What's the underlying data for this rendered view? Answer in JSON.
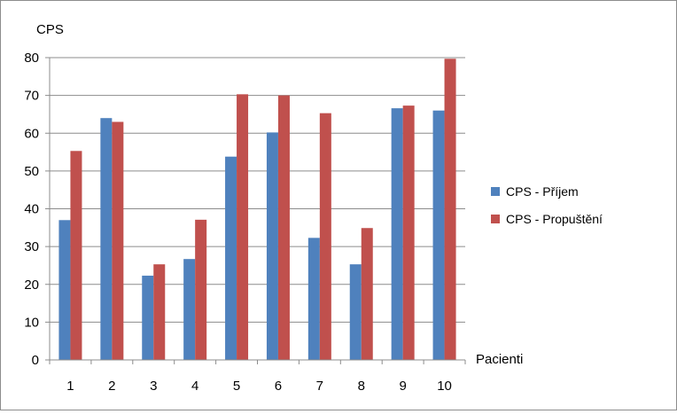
{
  "chart_data": {
    "type": "bar",
    "title": "",
    "ylabel": "CPS",
    "xlabel": "Pacienti",
    "categories": [
      "1",
      "2",
      "3",
      "4",
      "5",
      "6",
      "7",
      "8",
      "9",
      "10"
    ],
    "series": [
      {
        "name": "CPS - Příjem",
        "color": "#4f81bd",
        "values": [
          37,
          64,
          22.3,
          26.7,
          53.8,
          60.2,
          32.3,
          25.3,
          66.6,
          66
        ]
      },
      {
        "name": "CPS - Propuštění",
        "color": "#c0504d",
        "values": [
          55.3,
          63,
          25.3,
          37.1,
          70.3,
          70,
          65.3,
          34.9,
          67.3,
          79.7
        ]
      }
    ],
    "ylim": [
      0,
      80
    ],
    "yticks": [
      0,
      10,
      20,
      30,
      40,
      50,
      60,
      70,
      80
    ],
    "grid": true,
    "legend_position": "right"
  }
}
